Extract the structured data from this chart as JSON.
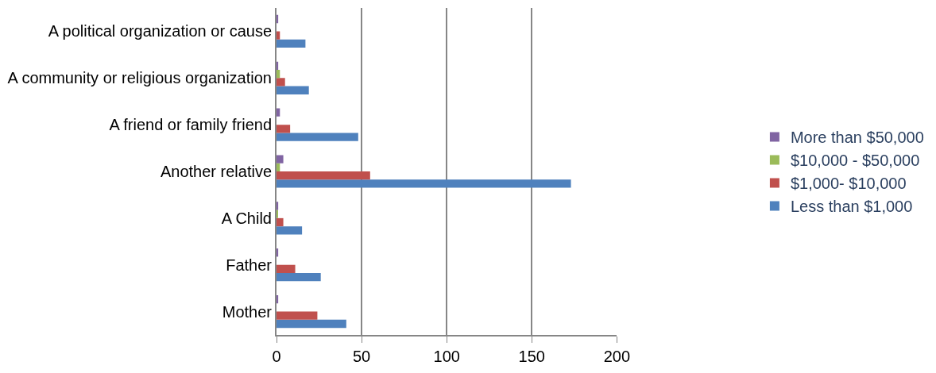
{
  "chart_data": {
    "type": "bar",
    "orientation": "horizontal",
    "categories": [
      "A political organization or cause",
      "A community or religious organization",
      "A friend or family friend",
      "Another relative",
      "A Child",
      "Father",
      "Mother"
    ],
    "series": [
      {
        "name": "Less than $1,000",
        "color": "#4f81bd",
        "values": [
          17,
          19,
          48,
          173,
          15,
          26,
          41
        ]
      },
      {
        "name": "$1,000- $10,000",
        "color": "#c0504d",
        "values": [
          2,
          5,
          8,
          55,
          4,
          11,
          24
        ]
      },
      {
        "name": "$10,000 - $50,000",
        "color": "#9bbb59",
        "values": [
          0,
          2,
          0,
          2,
          0.5,
          0,
          0
        ]
      },
      {
        "name": "More than $50,000",
        "color": "#8064a2",
        "values": [
          1,
          1,
          2,
          4,
          1,
          1,
          1
        ]
      }
    ],
    "xlim": [
      0,
      200
    ],
    "xticks": [
      0,
      50,
      100,
      150,
      200
    ],
    "grid": "x",
    "legend": "right"
  }
}
